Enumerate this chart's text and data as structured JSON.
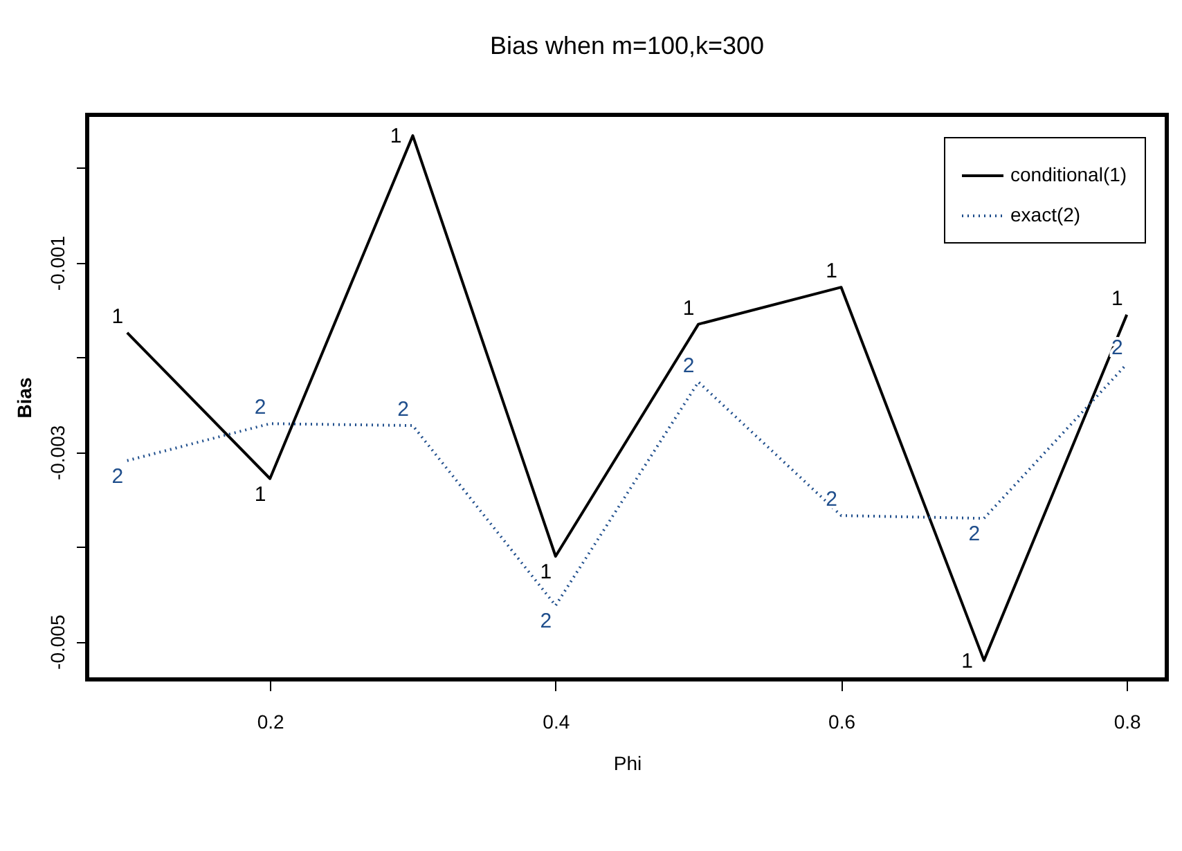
{
  "chart_data": {
    "type": "line",
    "title": "Bias when m=100,k=300",
    "xlabel": "Phi",
    "ylabel": "Bias",
    "x": [
      0.1,
      0.2,
      0.3,
      0.4,
      0.5,
      0.6,
      0.7,
      0.8
    ],
    "series": [
      {
        "name": "conditional(1)",
        "color": "#000000",
        "line_style": "solid",
        "values": [
          -0.00174,
          -0.00328,
          0.00034,
          -0.0041,
          -0.00165,
          -0.00126,
          -0.0052,
          -0.00155
        ]
      },
      {
        "name": "exact(2)",
        "color": "#1f4e8c",
        "line_style": "dotted",
        "values": [
          -0.00309,
          -0.0027,
          -0.00272,
          -0.00462,
          -0.00226,
          -0.00367,
          -0.0037,
          -0.00207
        ]
      }
    ],
    "annotations": [
      {
        "text": "1",
        "x": 0.1,
        "y": -0.00174
      },
      {
        "text": "1",
        "x": 0.2,
        "y": -0.00328
      },
      {
        "text": "1",
        "x": 0.3,
        "y": 0.00034
      },
      {
        "text": "1",
        "x": 0.4,
        "y": -0.0041
      },
      {
        "text": "1",
        "x": 0.5,
        "y": -0.00165
      },
      {
        "text": "1",
        "x": 0.6,
        "y": -0.00126
      },
      {
        "text": "1",
        "x": 0.7,
        "y": -0.0052
      },
      {
        "text": "1",
        "x": 0.8,
        "y": -0.00155
      },
      {
        "text": "2",
        "x": 0.1,
        "y": -0.00309
      },
      {
        "text": "2",
        "x": 0.2,
        "y": -0.0027
      },
      {
        "text": "2",
        "x": 0.3,
        "y": -0.00272
      },
      {
        "text": "2",
        "x": 0.4,
        "y": -0.00462
      },
      {
        "text": "2",
        "x": 0.5,
        "y": -0.00226
      },
      {
        "text": "2",
        "x": 0.6,
        "y": -0.00367
      },
      {
        "text": "2",
        "x": 0.7,
        "y": -0.0037
      },
      {
        "text": "2",
        "x": 0.8,
        "y": -0.00207
      }
    ],
    "xlim": [
      0.072,
      0.828
    ],
    "xticks": [
      0.2,
      0.4,
      0.6,
      0.8
    ],
    "ylim": [
      -0.0054,
      0.00056
    ],
    "yticks": [
      {
        "value": 0,
        "label": null
      },
      -0.001,
      {
        "value": -0.002,
        "label": null
      },
      -0.003,
      {
        "value": -0.004,
        "label": null
      },
      -0.005
    ],
    "grid": false,
    "legend": "top right"
  }
}
